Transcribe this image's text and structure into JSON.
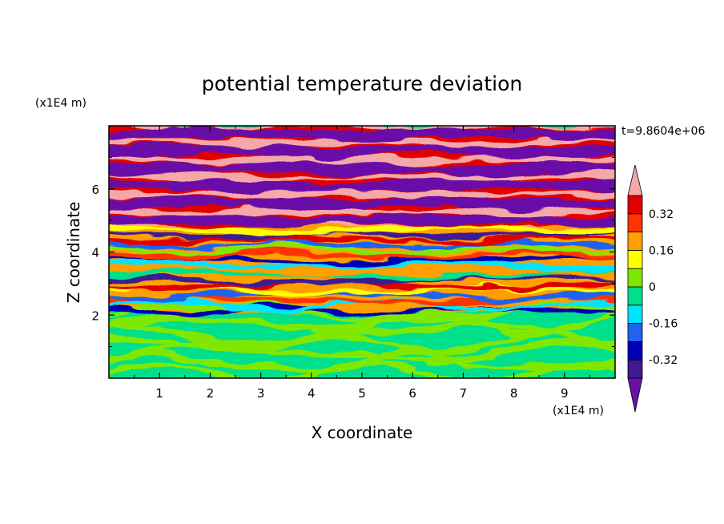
{
  "chart_data": {
    "type": "heatmap",
    "title": "potential temperature deviation",
    "xlabel": "X coordinate",
    "ylabel": "Z coordinate",
    "x_unit_label": "(x1E4 m)",
    "y_unit_label": "(x1E4 m)",
    "time_label": "t=9.8604e+06",
    "xlim": [
      0,
      10
    ],
    "ylim": [
      0,
      8
    ],
    "x_ticks": [
      "1",
      "2",
      "3",
      "4",
      "5",
      "6",
      "7",
      "8",
      "9"
    ],
    "y_ticks": [
      "2",
      "4",
      "6"
    ],
    "colorbar": {
      "levels": [
        -0.4,
        -0.32,
        -0.24,
        -0.16,
        -0.08,
        0,
        0.08,
        0.16,
        0.24,
        0.32,
        0.4
      ],
      "tick_labels": [
        "0.32",
        "0.16",
        "0",
        "-0.16",
        "-0.32"
      ],
      "tick_values": [
        0.32,
        0.16,
        0,
        -0.16,
        -0.32
      ],
      "colors_low_to_high": [
        "#3d1a93",
        "#0000b4",
        "#1e64f0",
        "#00e5ff",
        "#00e08a",
        "#80e800",
        "#ffff00",
        "#ff9f00",
        "#ff3500",
        "#e00000"
      ],
      "under_color": "#6a0fa8",
      "over_color": "#f5a8a8"
    },
    "regions": [
      {
        "z_range": [
          0,
          2.1
        ],
        "pattern": "alternating 0 to 0.08 (green / light green)"
      },
      {
        "z_range": [
          2.1,
          4.8
        ],
        "pattern": "mixed wavy layers, full range of values"
      },
      {
        "z_range": [
          4.8,
          8
        ],
        "pattern": "alternating bands above 0.40 and below -0.40"
      }
    ]
  }
}
